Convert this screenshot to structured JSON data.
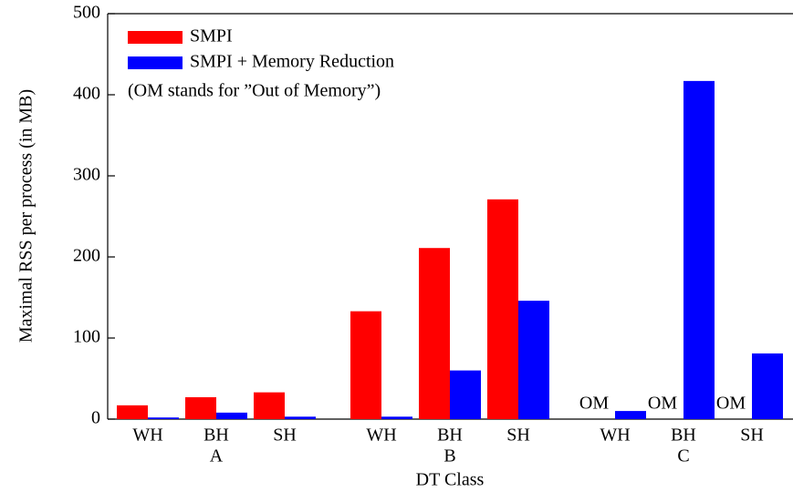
{
  "chart_data": {
    "type": "bar",
    "x_label": "DT Class",
    "y_label": "Maximal RSS per process (in MB)",
    "note": "(OM stands for ”Out of Memory”)",
    "groups": [
      "A",
      "B",
      "C"
    ],
    "categories": [
      "WH",
      "BH",
      "SH",
      "WH",
      "BH",
      "SH",
      "WH",
      "BH",
      "SH"
    ],
    "series": [
      {
        "name": "SMPI",
        "color": "#ff0000",
        "values": [
          17,
          27,
          33,
          133,
          211,
          271,
          null,
          null,
          null
        ],
        "value_labels": [
          null,
          null,
          null,
          null,
          null,
          null,
          "OM",
          "OM",
          "OM"
        ]
      },
      {
        "name": "SMPI + Memory Reduction",
        "color": "#0000ff",
        "values": [
          2,
          8,
          3,
          3,
          60,
          146,
          10,
          417,
          81
        ]
      }
    ],
    "ylim": [
      0,
      500
    ],
    "yticks": [
      0,
      100,
      200,
      300,
      400,
      500
    ]
  }
}
